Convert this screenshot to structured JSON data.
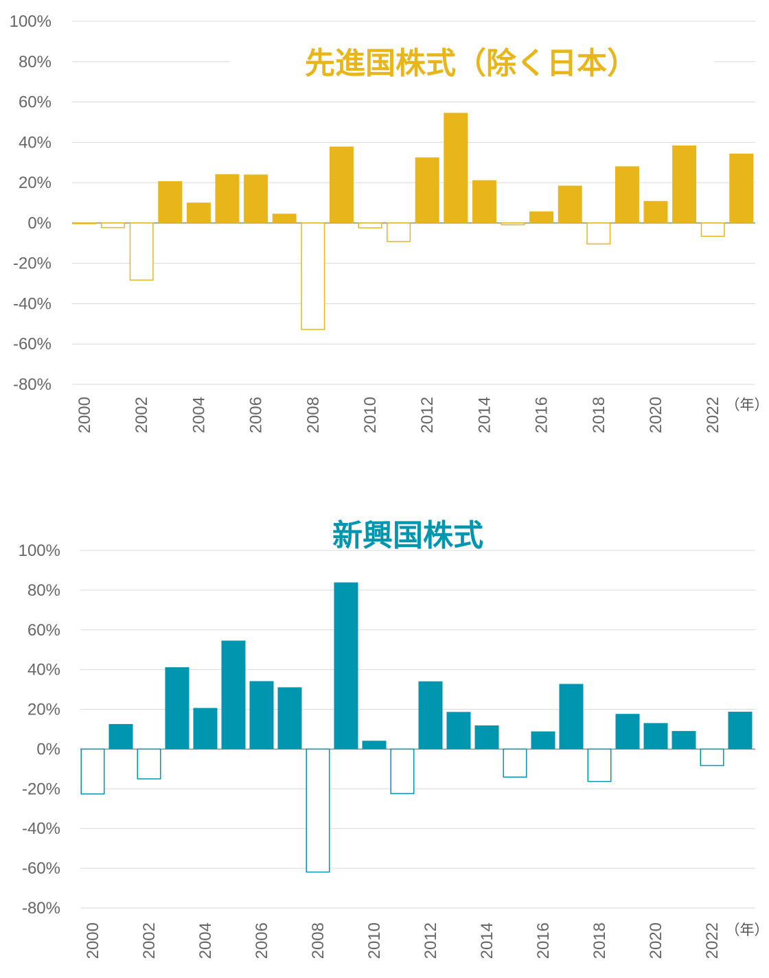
{
  "chart_data": [
    {
      "type": "bar",
      "title": "先進国株式（除く日本）",
      "color": "#E8B61A",
      "negative_style": "outlined",
      "x_unit": "（年）",
      "ylim": [
        -80,
        100
      ],
      "yticks": [
        "100%",
        "80%",
        "60%",
        "40%",
        "20%",
        "0%",
        "-20%",
        "-40%",
        "-60%",
        "-80%"
      ],
      "xtick_labels": [
        "2000",
        "2002",
        "2004",
        "2006",
        "2008",
        "2010",
        "2012",
        "2014",
        "2016",
        "2018",
        "2020",
        "2022"
      ],
      "categories": [
        2000,
        2001,
        2002,
        2003,
        2004,
        2005,
        2006,
        2007,
        2008,
        2009,
        2010,
        2011,
        2012,
        2013,
        2014,
        2015,
        2016,
        2017,
        2018,
        2019,
        2020,
        2021,
        2022,
        2023
      ],
      "values": [
        -0.1,
        -2.3,
        -28.3,
        20.7,
        10.1,
        24.2,
        24.0,
        4.6,
        -52.8,
        37.9,
        -2.4,
        -9.2,
        32.5,
        54.6,
        21.2,
        -0.9,
        5.7,
        18.5,
        -10.4,
        28.1,
        10.9,
        38.4,
        -6.6,
        34.4
      ],
      "grid": true
    },
    {
      "type": "bar",
      "title": "新興国株式",
      "color": "#0096B0",
      "negative_style": "outlined",
      "x_unit": "（年）",
      "ylim": [
        -80,
        100
      ],
      "yticks": [
        "100%",
        "80%",
        "60%",
        "40%",
        "20%",
        "0%",
        "-20%",
        "-40%",
        "-60%",
        "-80%"
      ],
      "xtick_labels": [
        "2000",
        "2002",
        "2004",
        "2006",
        "2008",
        "2010",
        "2012",
        "2014",
        "2016",
        "2018",
        "2020",
        "2022"
      ],
      "categories": [
        2000,
        2001,
        2002,
        2003,
        2004,
        2005,
        2006,
        2007,
        2008,
        2009,
        2010,
        2011,
        2012,
        2013,
        2014,
        2015,
        2016,
        2017,
        2018,
        2019,
        2020,
        2021,
        2022,
        2023
      ],
      "values": [
        -22.6,
        12.6,
        -15.0,
        41.2,
        20.7,
        54.6,
        34.2,
        31.1,
        -61.9,
        83.9,
        4.2,
        -22.4,
        34.1,
        18.7,
        11.9,
        -14.1,
        8.9,
        32.8,
        -16.3,
        17.7,
        13.1,
        9.1,
        -8.3,
        18.8
      ],
      "grid": true
    }
  ]
}
